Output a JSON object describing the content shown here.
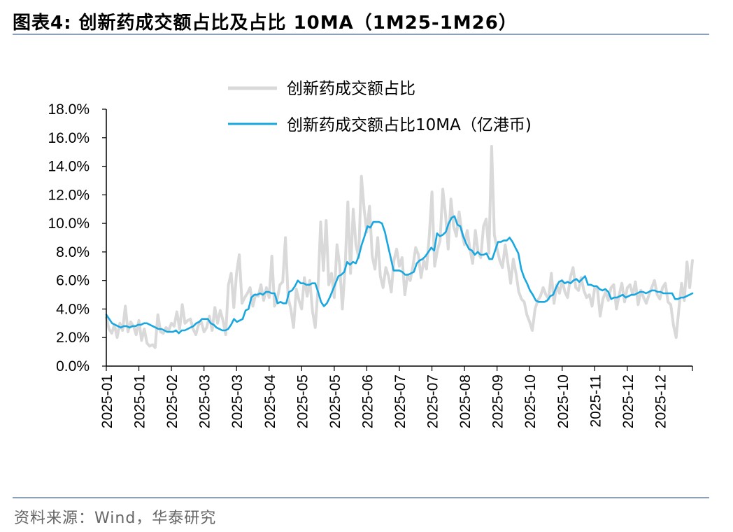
{
  "header": {
    "title": "图表4:   创新药成交额占比及占比 10MA（1M25-1M26）"
  },
  "footer": {
    "source": "资料来源：Wind，华泰研究"
  },
  "colors": {
    "ratio": "#d9d9d9",
    "ma": "#1aa7e0",
    "axis": "#000000",
    "rule": "#8da2ba"
  },
  "chart_data": {
    "type": "line",
    "title": "",
    "xlabel": "",
    "ylabel": "",
    "ylim": [
      0,
      0.18
    ],
    "yticks": [
      "0.0%",
      "2.0%",
      "4.0%",
      "6.0%",
      "8.0%",
      "10.0%",
      "12.0%",
      "14.0%",
      "16.0%",
      "18.0%"
    ],
    "xticks": [
      "2025-01",
      "2025-01",
      "2025-02",
      "2025-03",
      "2025-03",
      "2025-04",
      "2025-05",
      "2025-05",
      "2025-06",
      "2025-07",
      "2025-07",
      "2025-08",
      "2025-09",
      "2025-10",
      "2025-10",
      "2025-11",
      "2025-12",
      "2025-12"
    ],
    "legend_position": "top-center",
    "series": [
      {
        "name": "创新药成交额占比",
        "color": "#d9d9d9",
        "values": [
          0.034,
          0.026,
          0.023,
          0.029,
          0.02,
          0.03,
          0.025,
          0.042,
          0.024,
          0.031,
          0.028,
          0.022,
          0.032,
          0.018,
          0.026,
          0.016,
          0.014,
          0.015,
          0.013,
          0.036,
          0.024,
          0.023,
          0.027,
          0.025,
          0.03,
          0.028,
          0.038,
          0.026,
          0.043,
          0.03,
          0.032,
          0.033,
          0.026,
          0.022,
          0.029,
          0.031,
          0.024,
          0.027,
          0.035,
          0.025,
          0.041,
          0.03,
          0.039,
          0.032,
          0.022,
          0.057,
          0.065,
          0.041,
          0.065,
          0.078,
          0.044,
          0.048,
          0.051,
          0.055,
          0.042,
          0.05,
          0.049,
          0.057,
          0.046,
          0.055,
          0.048,
          0.077,
          0.042,
          0.047,
          0.057,
          0.059,
          0.09,
          0.048,
          0.04,
          0.027,
          0.054,
          0.046,
          0.04,
          0.062,
          0.049,
          0.06,
          0.038,
          0.027,
          0.054,
          0.101,
          0.067,
          0.102,
          0.057,
          0.065,
          0.048,
          0.085,
          0.071,
          0.04,
          0.069,
          0.115,
          0.065,
          0.11,
          0.085,
          0.076,
          0.133,
          0.11,
          0.094,
          0.112,
          0.077,
          0.068,
          0.09,
          0.063,
          0.055,
          0.069,
          0.063,
          0.052,
          0.074,
          0.082,
          0.07,
          0.076,
          0.05,
          0.064,
          0.06,
          0.07,
          0.083,
          0.078,
          0.062,
          0.074,
          0.068,
          0.091,
          0.122,
          0.07,
          0.081,
          0.088,
          0.124,
          0.106,
          0.082,
          0.117,
          0.098,
          0.091,
          0.108,
          0.094,
          0.085,
          0.095,
          0.082,
          0.072,
          0.095,
          0.08,
          0.076,
          0.098,
          0.103,
          0.079,
          0.154,
          0.092,
          0.082,
          0.074,
          0.069,
          0.085,
          0.072,
          0.058,
          0.075,
          0.065,
          0.052,
          0.047,
          0.045,
          0.036,
          0.031,
          0.025,
          0.04,
          0.046,
          0.049,
          0.055,
          0.05,
          0.047,
          0.065,
          0.044,
          0.057,
          0.051,
          0.06,
          0.052,
          0.048,
          0.062,
          0.069,
          0.055,
          0.053,
          0.062,
          0.053,
          0.048,
          0.05,
          0.042,
          0.055,
          0.054,
          0.035,
          0.047,
          0.052,
          0.046,
          0.055,
          0.057,
          0.04,
          0.05,
          0.058,
          0.045,
          0.055,
          0.057,
          0.05,
          0.059,
          0.043,
          0.053,
          0.048,
          0.044,
          0.05,
          0.055,
          0.06,
          0.05,
          0.047,
          0.055,
          0.058,
          0.045,
          0.043,
          0.029,
          0.02,
          0.04,
          0.058,
          0.046,
          0.073,
          0.055,
          0.074
        ],
        "n_points_span": 1.0
      },
      {
        "name": "创新药成交额占比10MA（亿港币)",
        "color": "#1aa7e0",
        "values": [
          0.036,
          0.033,
          0.03,
          0.029,
          0.028,
          0.027,
          0.028,
          0.028,
          0.027,
          0.028,
          0.028,
          0.029,
          0.029,
          0.03,
          0.03,
          0.029,
          0.028,
          0.027,
          0.026,
          0.026,
          0.025,
          0.024,
          0.024,
          0.024,
          0.025,
          0.023,
          0.025,
          0.025,
          0.026,
          0.027,
          0.028,
          0.03,
          0.031,
          0.033,
          0.033,
          0.033,
          0.03,
          0.029,
          0.027,
          0.026,
          0.025,
          0.025,
          0.026,
          0.029,
          0.033,
          0.031,
          0.032,
          0.033,
          0.039,
          0.04,
          0.048,
          0.05,
          0.05,
          0.051,
          0.05,
          0.052,
          0.052,
          0.051,
          0.051,
          0.044,
          0.045,
          0.044,
          0.044,
          0.052,
          0.053,
          0.056,
          0.06,
          0.058,
          0.058,
          0.057,
          0.057,
          0.058,
          0.058,
          0.052,
          0.045,
          0.042,
          0.044,
          0.048,
          0.053,
          0.058,
          0.063,
          0.064,
          0.066,
          0.073,
          0.071,
          0.073,
          0.072,
          0.077,
          0.085,
          0.091,
          0.098,
          0.097,
          0.101,
          0.101,
          0.101,
          0.1,
          0.094,
          0.085,
          0.076,
          0.067,
          0.067,
          0.067,
          0.066,
          0.064,
          0.064,
          0.065,
          0.066,
          0.072,
          0.074,
          0.075,
          0.077,
          0.08,
          0.083,
          0.081,
          0.093,
          0.091,
          0.092,
          0.094,
          0.1,
          0.104,
          0.105,
          0.099,
          0.098,
          0.091,
          0.086,
          0.082,
          0.081,
          0.078,
          0.08,
          0.078,
          0.078,
          0.079,
          0.075,
          0.075,
          0.081,
          0.087,
          0.087,
          0.088,
          0.088,
          0.09,
          0.087,
          0.083,
          0.079,
          0.068,
          0.062,
          0.058,
          0.053,
          0.05,
          0.046,
          0.045,
          0.045,
          0.045,
          0.046,
          0.049,
          0.05,
          0.055,
          0.059,
          0.06,
          0.058,
          0.059,
          0.058,
          0.06,
          0.061,
          0.059,
          0.061,
          0.063,
          0.057,
          0.057,
          0.056,
          0.056,
          0.054,
          0.053,
          0.054,
          0.052,
          0.047,
          0.048,
          0.048,
          0.049,
          0.05,
          0.048,
          0.049,
          0.05,
          0.05,
          0.051,
          0.052,
          0.052,
          0.051,
          0.052,
          0.053,
          0.053,
          0.052,
          0.052,
          0.051,
          0.051,
          0.051,
          0.051,
          0.047,
          0.047,
          0.048,
          0.048,
          0.049,
          0.05,
          0.051
        ]
      }
    ]
  }
}
